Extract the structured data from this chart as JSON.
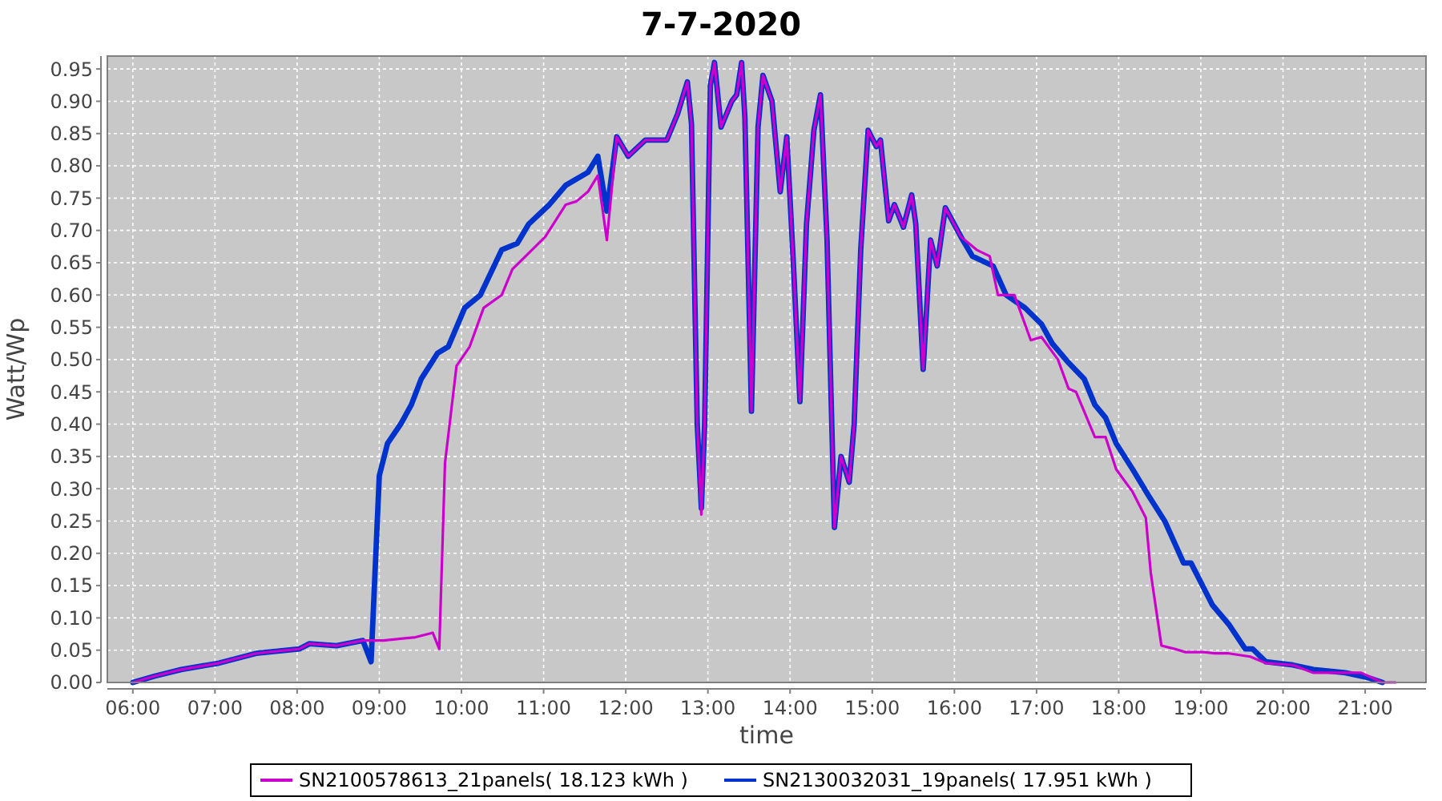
{
  "chart_data": {
    "type": "line",
    "title": "7-7-2020",
    "xlabel": "time",
    "ylabel": "Watt/Wp",
    "xlim": [
      5.69,
      21.74
    ],
    "ylim": [
      0,
      0.97
    ],
    "xticks": [
      {
        "value": 6,
        "label": "06:00"
      },
      {
        "value": 7,
        "label": "07:00"
      },
      {
        "value": 8,
        "label": "08:00"
      },
      {
        "value": 9,
        "label": "09:00"
      },
      {
        "value": 10,
        "label": "10:00"
      },
      {
        "value": 11,
        "label": "11:00"
      },
      {
        "value": 12,
        "label": "12:00"
      },
      {
        "value": 13,
        "label": "13:00"
      },
      {
        "value": 14,
        "label": "14:00"
      },
      {
        "value": 15,
        "label": "15:00"
      },
      {
        "value": 16,
        "label": "16:00"
      },
      {
        "value": 17,
        "label": "17:00"
      },
      {
        "value": 18,
        "label": "18:00"
      },
      {
        "value": 19,
        "label": "19:00"
      },
      {
        "value": 20,
        "label": "20:00"
      },
      {
        "value": 21,
        "label": "21:00"
      }
    ],
    "yticks": [
      {
        "value": 0,
        "label": "0.00"
      },
      {
        "value": 0.05,
        "label": "0.05"
      },
      {
        "value": 0.1,
        "label": "0.10"
      },
      {
        "value": 0.15,
        "label": "0.15"
      },
      {
        "value": 0.2,
        "label": "0.20"
      },
      {
        "value": 0.25,
        "label": "0.25"
      },
      {
        "value": 0.3,
        "label": "0.30"
      },
      {
        "value": 0.35,
        "label": "0.35"
      },
      {
        "value": 0.4,
        "label": "0.40"
      },
      {
        "value": 0.45,
        "label": "0.45"
      },
      {
        "value": 0.5,
        "label": "0.50"
      },
      {
        "value": 0.55,
        "label": "0.55"
      },
      {
        "value": 0.6,
        "label": "0.60"
      },
      {
        "value": 0.65,
        "label": "0.65"
      },
      {
        "value": 0.7,
        "label": "0.70"
      },
      {
        "value": 0.75,
        "label": "0.75"
      },
      {
        "value": 0.8,
        "label": "0.80"
      },
      {
        "value": 0.85,
        "label": "0.85"
      },
      {
        "value": 0.9,
        "label": "0.90"
      },
      {
        "value": 0.95,
        "label": "0.95"
      }
    ],
    "grid": true,
    "legend": "bottom",
    "line_style": "solid",
    "series": [
      {
        "name": "SN2100578613_21panels( 18.123 kWh )",
        "color": "#cc00cc",
        "x": [
          6,
          6.27,
          6.59,
          7.05,
          7.5,
          8.03,
          8.15,
          8.48,
          8.8,
          9.05,
          9.44,
          9.65,
          9.73,
          9.8,
          9.94,
          10.1,
          10.27,
          10.49,
          10.62,
          10.86,
          11.02,
          11.27,
          11.4,
          11.54,
          11.66,
          11.77,
          11.89,
          12.03,
          12.24,
          12.5,
          12.63,
          12.75,
          12.8,
          12.87,
          12.92,
          12.96,
          13.03,
          13.08,
          13.16,
          13.29,
          13.35,
          13.41,
          13.45,
          13.53,
          13.61,
          13.67,
          13.78,
          13.88,
          13.96,
          14.04,
          14.12,
          14.2,
          14.29,
          14.37,
          14.45,
          14.54,
          14.62,
          14.72,
          14.78,
          14.86,
          14.95,
          15.05,
          15.1,
          15.2,
          15.27,
          15.38,
          15.48,
          15.53,
          15.62,
          15.71,
          15.79,
          15.89,
          16.08,
          16.27,
          16.43,
          16.53,
          16.73,
          16.93,
          17.06,
          17.26,
          17.39,
          17.48,
          17.71,
          17.84,
          17.97,
          18.17,
          18.33,
          18.39,
          18.52,
          18.68,
          18.81,
          19.04,
          19.17,
          19.34,
          19.6,
          19.79,
          20.12,
          20.37,
          20.95,
          21.21,
          21.37
        ],
        "values": [
          0,
          0.01,
          0.02,
          0.03,
          0.045,
          0.052,
          0.06,
          0.057,
          0.065,
          0.065,
          0.07,
          0.077,
          0.052,
          0.34,
          0.49,
          0.52,
          0.58,
          0.6,
          0.64,
          0.67,
          0.69,
          0.74,
          0.745,
          0.76,
          0.785,
          0.685,
          0.845,
          0.815,
          0.84,
          0.84,
          0.88,
          0.93,
          0.865,
          0.4,
          0.26,
          0.4,
          0.925,
          0.96,
          0.86,
          0.9,
          0.91,
          0.96,
          0.875,
          0.42,
          0.86,
          0.94,
          0.9,
          0.76,
          0.845,
          0.65,
          0.435,
          0.71,
          0.855,
          0.91,
          0.685,
          0.24,
          0.35,
          0.31,
          0.4,
          0.67,
          0.855,
          0.83,
          0.84,
          0.715,
          0.74,
          0.705,
          0.755,
          0.71,
          0.485,
          0.685,
          0.645,
          0.735,
          0.69,
          0.67,
          0.66,
          0.6,
          0.6,
          0.53,
          0.535,
          0.5,
          0.455,
          0.45,
          0.38,
          0.38,
          0.33,
          0.295,
          0.255,
          0.17,
          0.057,
          0.052,
          0.047,
          0.047,
          0.045,
          0.045,
          0.04,
          0.03,
          0.027,
          0.015,
          0.015,
          0,
          0
        ]
      },
      {
        "name": "SN2130032031_19panels( 17.951 kWh )",
        "color": "#0033cc",
        "x": [
          6,
          6.27,
          6.59,
          7.05,
          7.5,
          8.03,
          8.15,
          8.48,
          8.8,
          8.9,
          9.0,
          9.1,
          9.26,
          9.39,
          9.51,
          9.71,
          9.84,
          10.04,
          10.23,
          10.49,
          10.68,
          10.82,
          11.07,
          11.27,
          11.54,
          11.66,
          11.77,
          11.89,
          12.03,
          12.24,
          12.5,
          12.63,
          12.75,
          12.8,
          12.87,
          12.92,
          12.96,
          13.03,
          13.08,
          13.16,
          13.29,
          13.35,
          13.41,
          13.45,
          13.53,
          13.61,
          13.67,
          13.78,
          13.88,
          13.96,
          14.04,
          14.12,
          14.2,
          14.29,
          14.37,
          14.45,
          14.54,
          14.62,
          14.72,
          14.78,
          14.86,
          14.95,
          15.05,
          15.1,
          15.2,
          15.27,
          15.38,
          15.48,
          15.53,
          15.62,
          15.71,
          15.79,
          15.89,
          16.08,
          16.22,
          16.47,
          16.63,
          16.86,
          17.06,
          17.19,
          17.39,
          17.58,
          17.71,
          17.84,
          17.97,
          18.17,
          18.36,
          18.56,
          18.79,
          18.88,
          19.14,
          19.34,
          19.54,
          19.63,
          19.79,
          20.12,
          20.37,
          20.76,
          21.02,
          21.21
        ],
        "values": [
          0,
          0.01,
          0.02,
          0.03,
          0.045,
          0.052,
          0.06,
          0.057,
          0.065,
          0.032,
          0.32,
          0.37,
          0.4,
          0.43,
          0.47,
          0.51,
          0.52,
          0.58,
          0.6,
          0.67,
          0.68,
          0.71,
          0.74,
          0.77,
          0.79,
          0.815,
          0.73,
          0.845,
          0.815,
          0.84,
          0.84,
          0.88,
          0.93,
          0.865,
          0.4,
          0.27,
          0.4,
          0.925,
          0.96,
          0.86,
          0.9,
          0.91,
          0.96,
          0.875,
          0.42,
          0.86,
          0.94,
          0.9,
          0.76,
          0.845,
          0.65,
          0.435,
          0.71,
          0.855,
          0.91,
          0.685,
          0.24,
          0.35,
          0.31,
          0.4,
          0.67,
          0.855,
          0.83,
          0.84,
          0.715,
          0.74,
          0.705,
          0.755,
          0.71,
          0.485,
          0.685,
          0.645,
          0.735,
          0.69,
          0.66,
          0.645,
          0.6,
          0.58,
          0.555,
          0.525,
          0.495,
          0.47,
          0.43,
          0.41,
          0.37,
          0.33,
          0.29,
          0.25,
          0.185,
          0.185,
          0.12,
          0.09,
          0.052,
          0.052,
          0.032,
          0.027,
          0.02,
          0.015,
          0.008,
          0
        ]
      }
    ]
  }
}
